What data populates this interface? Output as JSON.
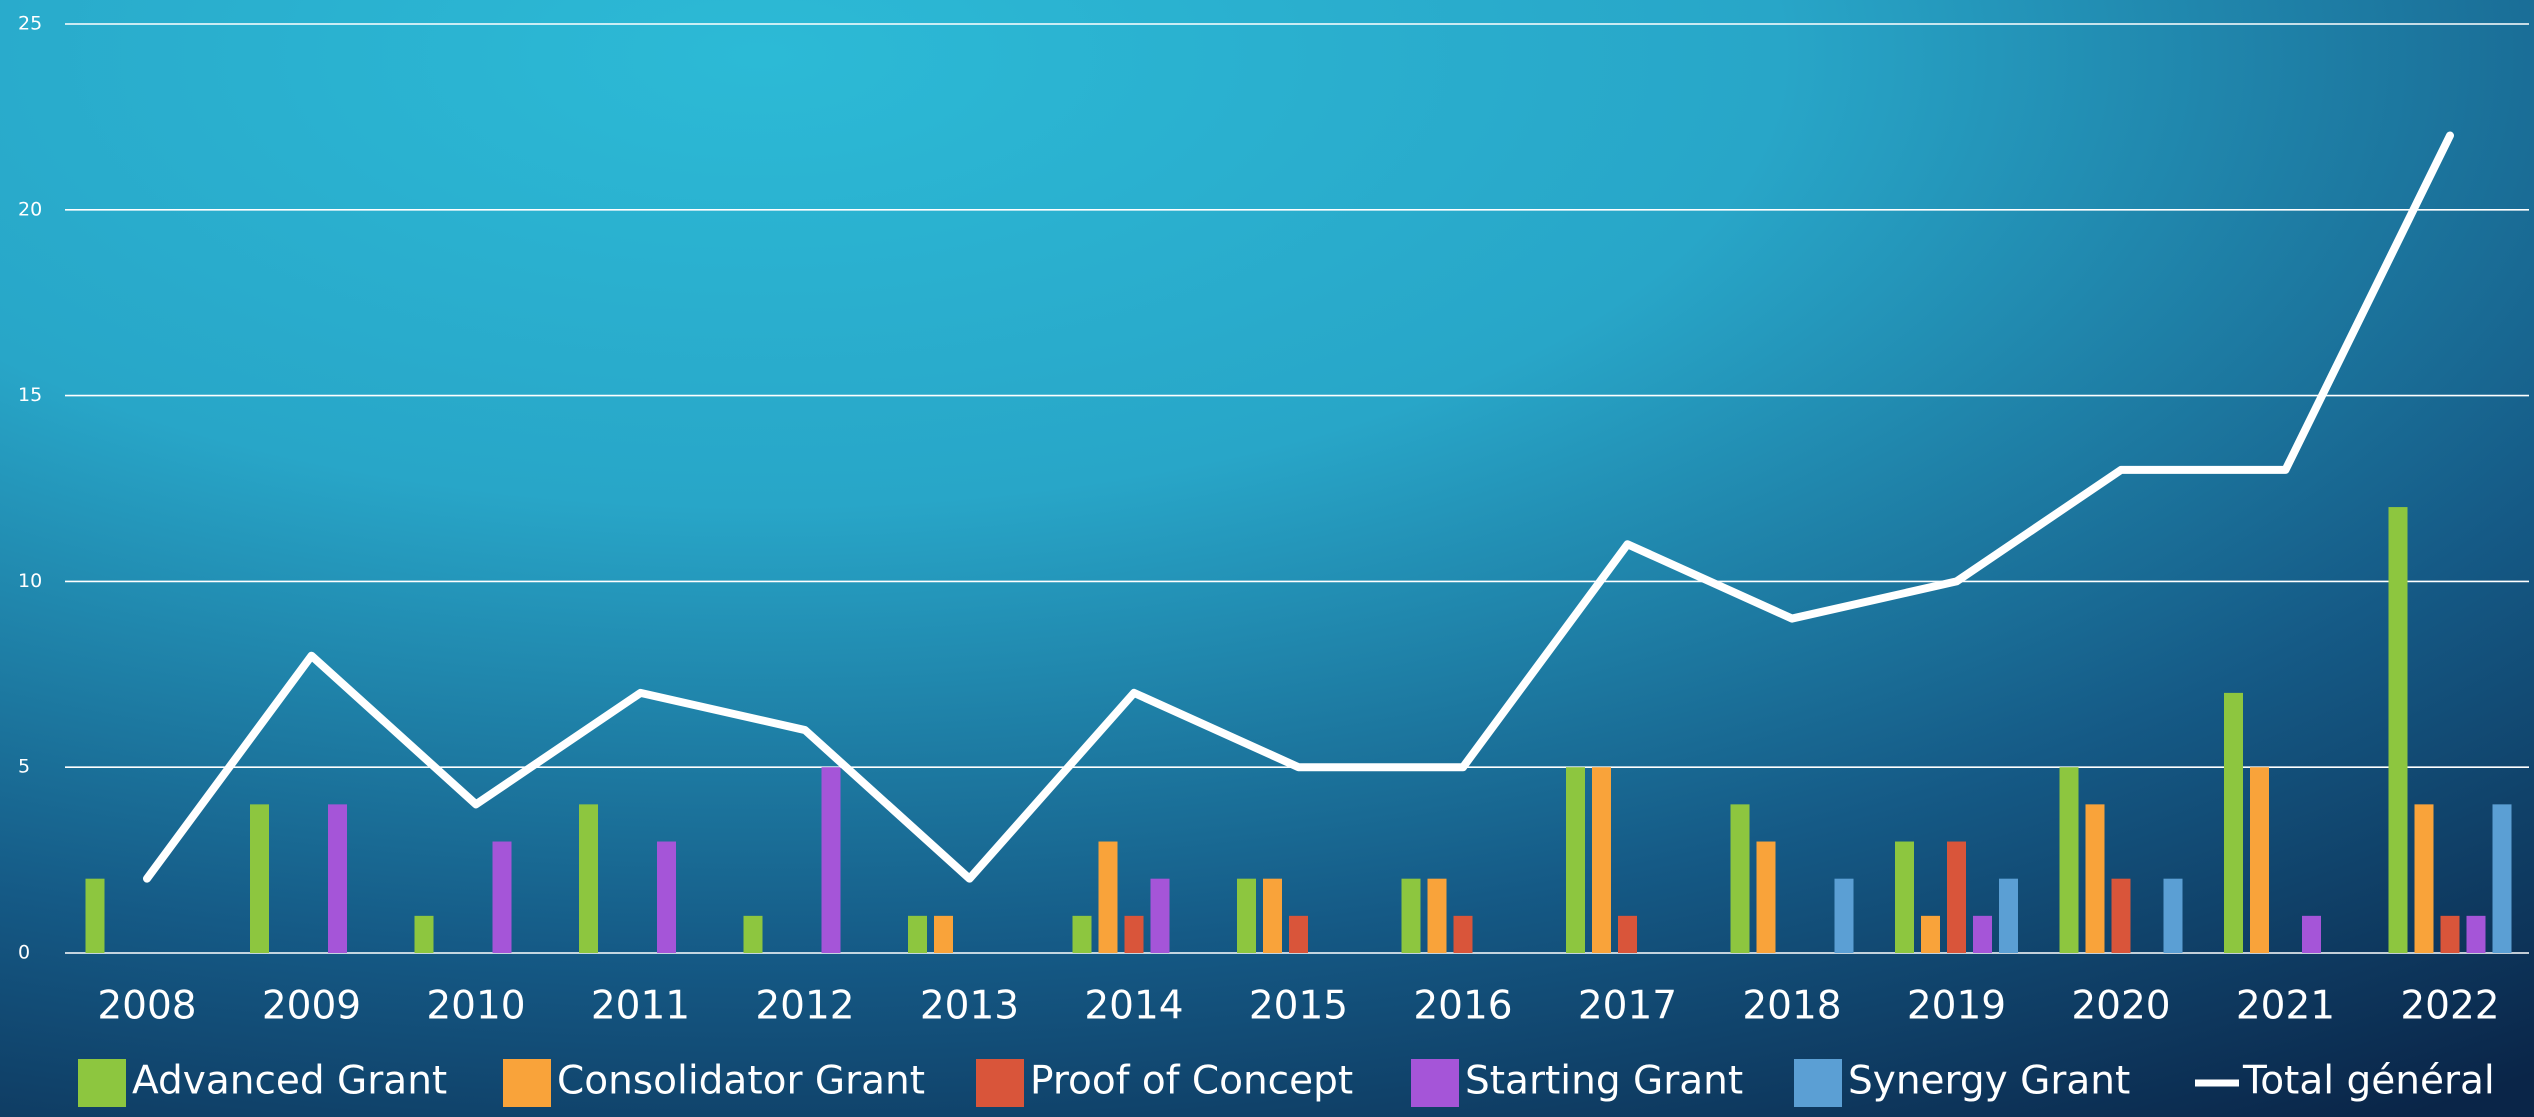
{
  "chart_data": {
    "type": "bar",
    "categories": [
      "2008",
      "2009",
      "2010",
      "2011",
      "2012",
      "2013",
      "2014",
      "2015",
      "2016",
      "2017",
      "2018",
      "2019",
      "2020",
      "2021",
      "2022"
    ],
    "series": [
      {
        "name": "Advanced Grant",
        "color": "#8dc63f",
        "values": [
          2,
          4,
          1,
          4,
          1,
          1,
          1,
          2,
          2,
          5,
          4,
          3,
          5,
          7,
          12
        ]
      },
      {
        "name": "Consolidator Grant",
        "color": "#f9a33a",
        "values": [
          null,
          null,
          null,
          null,
          null,
          1,
          3,
          2,
          2,
          5,
          3,
          1,
          4,
          5,
          4
        ]
      },
      {
        "name": "Proof of Concept",
        "color": "#d9553a",
        "values": [
          null,
          null,
          null,
          null,
          null,
          null,
          1,
          1,
          1,
          1,
          null,
          3,
          2,
          null,
          1
        ]
      },
      {
        "name": "Starting Grant",
        "color": "#a555d8",
        "values": [
          null,
          4,
          3,
          3,
          5,
          null,
          2,
          null,
          null,
          null,
          null,
          1,
          null,
          1,
          1
        ]
      },
      {
        "name": "Synergy Grant",
        "color": "#5b9fd4",
        "values": [
          null,
          null,
          null,
          null,
          null,
          null,
          null,
          null,
          null,
          null,
          2,
          2,
          2,
          null,
          4
        ]
      },
      {
        "name": "Total général",
        "color": "#ffffff",
        "type": "line",
        "values": [
          2,
          8,
          4,
          7,
          6,
          2,
          7,
          5,
          5,
          11,
          9,
          10,
          13,
          13,
          22
        ]
      }
    ],
    "ylim": [
      0,
      25
    ],
    "yticks": [
      0,
      5,
      10,
      15,
      20,
      25
    ],
    "grid": true,
    "legend": "bottom"
  }
}
